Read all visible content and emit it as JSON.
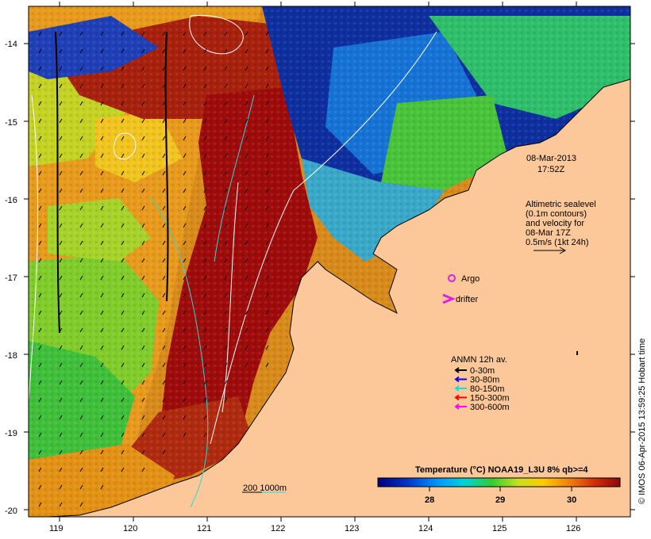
{
  "map": {
    "y_ticks": [
      "-14",
      "-15",
      "-16",
      "-17",
      "-18",
      "-19",
      "-20"
    ],
    "x_ticks": [
      "119",
      "120",
      "121",
      "122",
      "123",
      "124",
      "125",
      "126"
    ],
    "date_line1": "08-Mar-2013",
    "date_line2": "17:52Z",
    "altimetry_lines": [
      "Altimetric sealevel",
      "(0.1m contours)",
      "and velocity for",
      "08-Mar 17Z",
      "0.5m/s (1kt 24h)"
    ],
    "legend_argo": "Argo",
    "legend_drifter": "drifter",
    "anmn_title": "ANMN 12h av.",
    "anmn_items": [
      {
        "label": "0-30m",
        "color": "#000000"
      },
      {
        "label": "30-80m",
        "color": "#0000ff"
      },
      {
        "label": "80-150m",
        "color": "#00e5e5"
      },
      {
        "label": "150-300m",
        "color": "#ff0000"
      },
      {
        "label": "300-600m",
        "color": "#ff00ff"
      }
    ],
    "isobath_label": "200  1000m",
    "colorbar_title": "Temperature (°C) NOAA19_L3U 8% qb>=4",
    "colorbar_ticks": [
      "28",
      "29",
      "30"
    ],
    "credit": "© IMOS 06-Apr-2015 13:59:25 Hobart time",
    "colors": {
      "land": "#fcc89a",
      "warm": "#9e0b0b",
      "orange": "#e2861a",
      "cool_blue": "#0a2aa8",
      "green": "#35c23a",
      "argo": "#e020e0"
    }
  }
}
